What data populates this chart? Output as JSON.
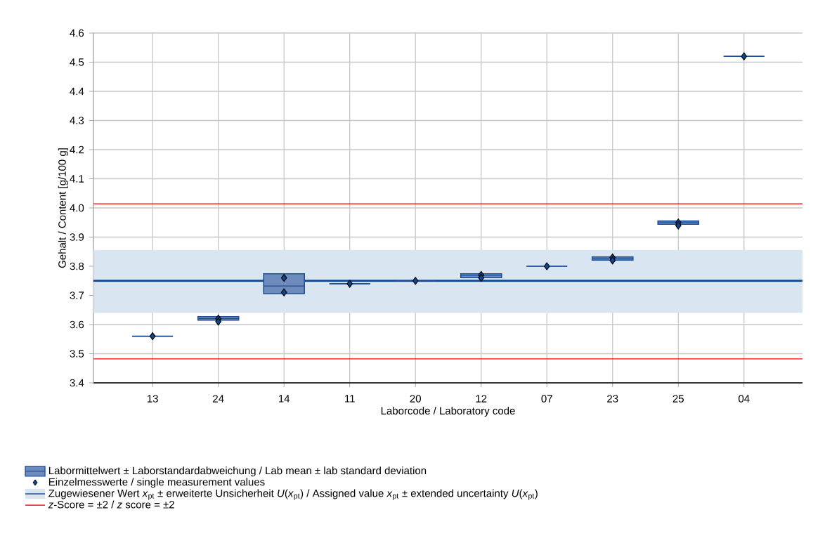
{
  "chart_data": {
    "type": "box",
    "xlabel": "Laborcode / Laboratory code",
    "ylabel": "Gehalt / Content [g/100 g]",
    "categories": [
      "13",
      "24",
      "14",
      "11",
      "20",
      "12",
      "07",
      "23",
      "25",
      "04"
    ],
    "ylim": [
      3.4,
      4.6
    ],
    "yticks": [
      3.4,
      3.5,
      3.6,
      3.7,
      3.8,
      3.9,
      {
        "value": 4.0,
        "label": "4.0"
      },
      4.1,
      4.2,
      4.3,
      4.4,
      4.5,
      4.6
    ],
    "grid": true,
    "legend": "bottom",
    "marker": "diamond",
    "series": [
      {
        "type": "box",
        "name": "Labormittelwert ± Laborstandardabweichung / Lab mean ± lab standard deviation",
        "color": "#1f4e99",
        "boxes": [
          {
            "low": 3.56,
            "q1": 3.56,
            "median": 3.56,
            "q3": 3.56,
            "high": 3.56
          },
          {
            "low": 3.615,
            "q1": 3.615,
            "median": 3.62,
            "q3": 3.627,
            "high": 3.627
          },
          {
            "low": 3.706,
            "q1": 3.706,
            "median": 3.732,
            "q3": 3.774,
            "high": 3.774
          },
          {
            "low": 3.74,
            "q1": 3.74,
            "median": 3.74,
            "q3": 3.74,
            "high": 3.74
          },
          {
            "low": 3.75,
            "q1": 3.75,
            "median": 3.75,
            "q3": 3.75,
            "high": 3.75
          },
          {
            "low": 3.761,
            "q1": 3.761,
            "median": 3.768,
            "q3": 3.774,
            "high": 3.774
          },
          {
            "low": 3.8,
            "q1": 3.8,
            "median": 3.8,
            "q3": 3.8,
            "high": 3.8
          },
          {
            "low": 3.821,
            "q1": 3.821,
            "median": 3.826,
            "q3": 3.832,
            "high": 3.832
          },
          {
            "low": 3.944,
            "q1": 3.944,
            "median": 3.95,
            "q3": 3.955,
            "high": 3.955
          },
          {
            "low": 4.52,
            "q1": 4.52,
            "median": 4.52,
            "q3": 4.52,
            "high": 4.52
          }
        ]
      },
      {
        "type": "scatter",
        "name": "Einzelmesswerte / single measurement values",
        "color": "#0b4a8f",
        "x": [
          "13",
          "24",
          "24",
          "14",
          "14",
          "11",
          "20",
          "12",
          "12",
          "07",
          "23",
          "23",
          "25",
          "25",
          "04"
        ],
        "values": [
          3.56,
          3.62,
          3.61,
          3.76,
          3.71,
          3.74,
          3.75,
          3.77,
          3.76,
          3.8,
          3.83,
          3.82,
          3.95,
          3.94,
          4.52
        ]
      }
    ],
    "ref_lines": [
      {
        "axis": "y",
        "value": 3.75,
        "color": "#0d4a96"
      },
      {
        "axis": "y",
        "value": 4.014,
        "color": "#ff0000",
        "label": "*z*-Score = ±2 / *z* score = ±2"
      },
      {
        "axis": "y",
        "value": 3.482,
        "color": "#ff0000"
      }
    ],
    "bands": [
      {
        "axis": "y",
        "from": 3.64,
        "to": 3.856,
        "color": "#dae5f2",
        "label": "Zugewiesener Wert *x*$_{pt}$ ± erweiterte Unsicherheit *U*(*x*$_{pt}$) / Assigned value *x*$_{pt}$ ± extended uncertainty *U*(*x*$_{pt}$)"
      }
    ]
  }
}
